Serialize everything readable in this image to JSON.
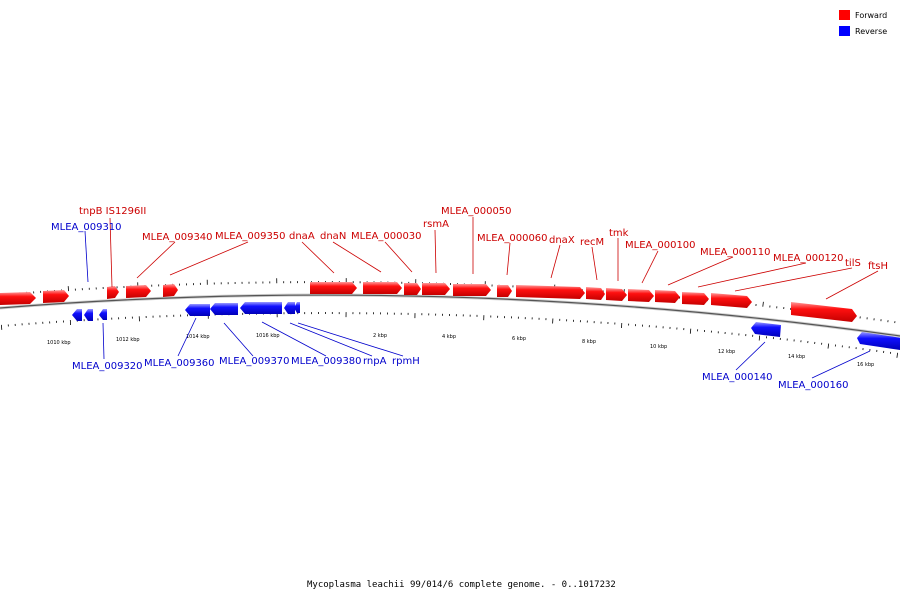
{
  "legend": {
    "forward_label": "Forward",
    "reverse_label": "Reverse",
    "forward_color": "#ff0000",
    "reverse_color": "#0000ff"
  },
  "caption": "Mycoplasma leachii 99/014/6 complete genome. - 0..1017232",
  "colors": {
    "forward_label": "#cc0000",
    "reverse_label": "#0000cc",
    "backbone": "#888888"
  },
  "tick_labels": [
    "1010 kbp",
    "1012 kbp",
    "1014 kbp",
    "1016 kbp",
    "2 kbp",
    "4 kbp",
    "6 kbp",
    "8 kbp",
    "10 kbp",
    "12 kbp",
    "14 kbp",
    "16 kbp"
  ],
  "forward_labels": [
    "tnpB IS1296II",
    "MLEA_009340",
    "MLEA_009350",
    "dnaA",
    "dnaN",
    "MLEA_000030",
    "rsmA",
    "MLEA_000050",
    "MLEA_000060",
    "dnaX",
    "recM",
    "tmk",
    "MLEA_000100",
    "MLEA_000110",
    "MLEA_000120",
    "tilS",
    "ftsH"
  ],
  "reverse_labels": [
    "MLEA_009310",
    "MLEA_009320",
    "MLEA_009360",
    "MLEA_009370",
    "MLEA_009380",
    "rnpA",
    "rpmH",
    "MLEA_000140",
    "MLEA_000160"
  ]
}
